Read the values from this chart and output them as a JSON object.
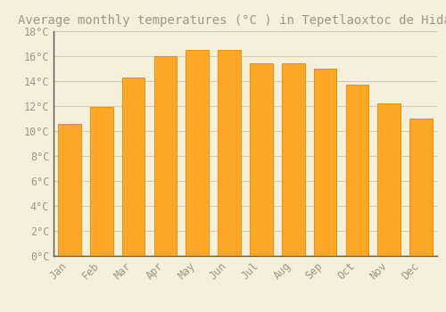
{
  "title": "Average monthly temperatures (°C ) in Tepetlaoxtoc de Hidalgo",
  "months": [
    "Jan",
    "Feb",
    "Mar",
    "Apr",
    "May",
    "Jun",
    "Jul",
    "Aug",
    "Sep",
    "Oct",
    "Nov",
    "Dec"
  ],
  "temperatures": [
    10.6,
    11.9,
    14.3,
    16.0,
    16.5,
    16.5,
    15.4,
    15.4,
    15.0,
    13.7,
    12.2,
    11.0
  ],
  "bar_color": "#FFA726",
  "bar_edge_color": "#E69300",
  "background_color": "#F5F0DC",
  "plot_bg_color": "#F5F0DC",
  "grid_color": "#CCCCBB",
  "text_color": "#999988",
  "ylim": [
    0,
    18
  ],
  "ytick_step": 2,
  "title_fontsize": 10,
  "tick_fontsize": 8.5
}
